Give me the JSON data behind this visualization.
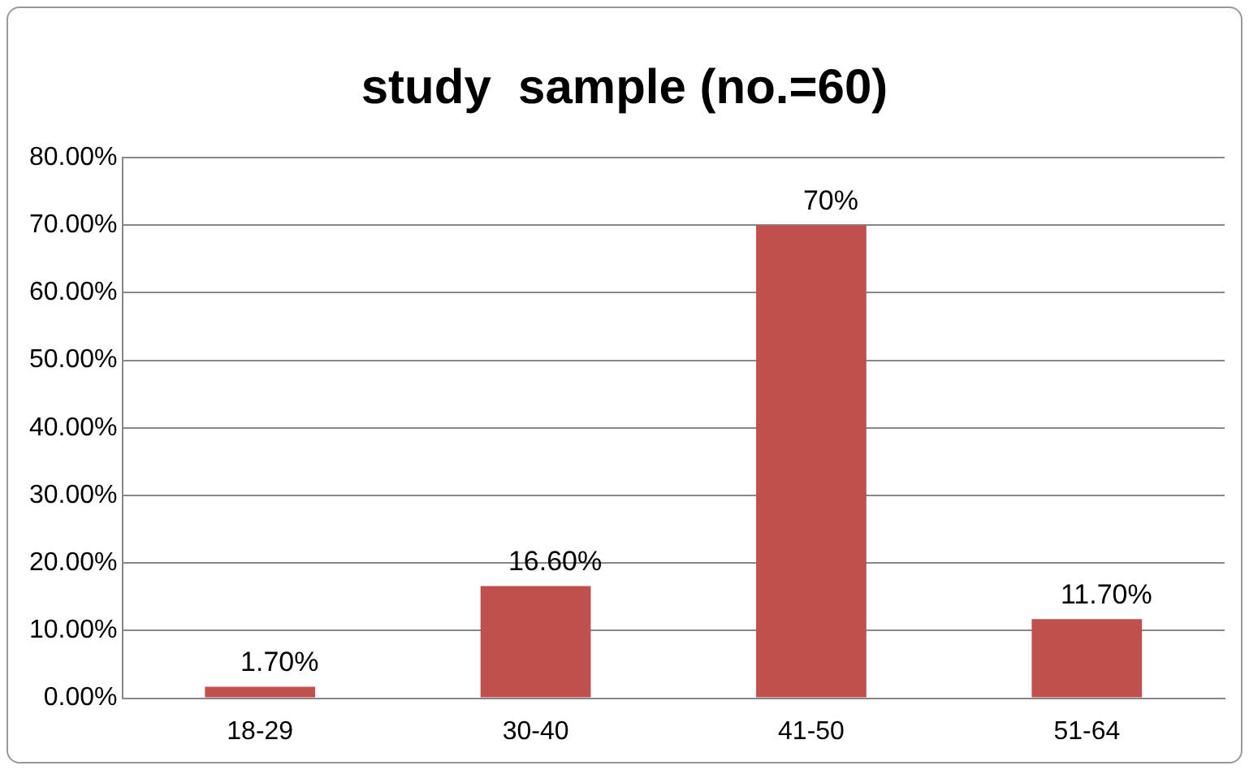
{
  "chart_data": {
    "type": "bar",
    "title": "study  sample (no.=60)",
    "categories": [
      "18-29",
      "30-40",
      "41-50",
      "51-64"
    ],
    "values": [
      1.7,
      16.6,
      70,
      11.7
    ],
    "value_labels": [
      "1.70%",
      "16.60%",
      "70%",
      "11.70%"
    ],
    "color": "#c0504d",
    "ylim": [
      0,
      80
    ],
    "yticks": [
      {
        "value": 0,
        "label": "0.00%"
      },
      {
        "value": 10,
        "label": "10.00%"
      },
      {
        "value": 20,
        "label": "20.00%"
      },
      {
        "value": 30,
        "label": "30.00%"
      },
      {
        "value": 40,
        "label": "40.00%"
      },
      {
        "value": 50,
        "label": "50.00%"
      },
      {
        "value": 60,
        "label": "60.00%"
      },
      {
        "value": 70,
        "label": "70.00%"
      },
      {
        "value": 80,
        "label": "80.00%"
      }
    ],
    "grid": "y"
  }
}
